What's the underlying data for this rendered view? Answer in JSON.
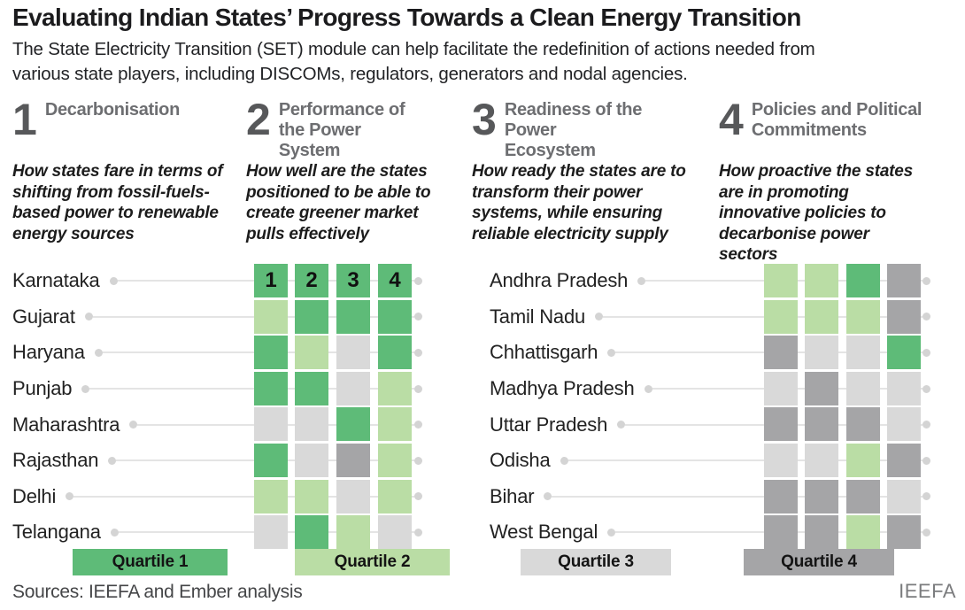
{
  "title": "Evaluating Indian States’ Progress Towards a Clean Energy Transition",
  "subtitle_lines": [
    "The State Electricity Transition (SET) module can help facilitate the redefinition of actions needed from",
    "various state players, including DISCOMs, regulators, generators and nodal agencies."
  ],
  "pillars": [
    {
      "number": "1",
      "label": "Decarbonisation",
      "description": "How states fare in terms of shifting from fossil-fuels-based power to renewable energy sources"
    },
    {
      "number": "2",
      "label": "Performance of the Power System",
      "description": "How well are the states positioned to be able to create greener market pulls effectively"
    },
    {
      "number": "3",
      "label": "Readiness of the Power Ecosystem",
      "description": "How ready the states are to transform their power systems, while ensuring reliable electricity supply"
    },
    {
      "number": "4",
      "label": "Policies and Political Commitments",
      "description": "How proactive the states are in promoting innovative policies to decarbonise power sectors"
    }
  ],
  "legend": [
    {
      "label": "Quartile 1",
      "color": "#5ebb78"
    },
    {
      "label": "Quartile 2",
      "color": "#badda5"
    },
    {
      "label": "Quartile 3",
      "color": "#d9d9d9"
    },
    {
      "label": "Quartile 4",
      "color": "#a5a5a7"
    }
  ],
  "chart_data": {
    "type": "heatmap",
    "title": "Evaluating Indian States’ Progress Towards a Clean Energy Transition",
    "columns": [
      "Decarbonisation",
      "Performance of the Power System",
      "Readiness of the Power Ecosystem",
      "Policies and Political Commitments"
    ],
    "legend_entries": [
      "Quartile 1",
      "Quartile 2",
      "Quartile 3",
      "Quartile 4"
    ],
    "value_meaning": "quartile rank per pillar (1 best, 4 worst)",
    "left_states": [
      {
        "name": "Karnataka",
        "quartiles": [
          1,
          1,
          1,
          1
        ],
        "cell_labels": [
          "1",
          "2",
          "3",
          "4"
        ]
      },
      {
        "name": "Gujarat",
        "quartiles": [
          2,
          1,
          1,
          1
        ]
      },
      {
        "name": "Haryana",
        "quartiles": [
          1,
          2,
          3,
          1
        ]
      },
      {
        "name": "Punjab",
        "quartiles": [
          1,
          1,
          3,
          2
        ]
      },
      {
        "name": "Maharashtra",
        "quartiles": [
          3,
          3,
          1,
          2
        ]
      },
      {
        "name": "Rajasthan",
        "quartiles": [
          1,
          3,
          4,
          2
        ]
      },
      {
        "name": "Delhi",
        "quartiles": [
          2,
          2,
          3,
          2
        ]
      },
      {
        "name": "Telangana",
        "quartiles": [
          3,
          1,
          2,
          3
        ]
      }
    ],
    "right_states": [
      {
        "name": "Andhra Pradesh",
        "quartiles": [
          2,
          2,
          1,
          4
        ]
      },
      {
        "name": "Tamil Nadu",
        "quartiles": [
          2,
          2,
          2,
          4
        ]
      },
      {
        "name": "Chhattisgarh",
        "quartiles": [
          4,
          3,
          3,
          1
        ]
      },
      {
        "name": "Madhya Pradesh",
        "quartiles": [
          3,
          4,
          3,
          3
        ]
      },
      {
        "name": "Uttar Pradesh",
        "quartiles": [
          4,
          4,
          4,
          3
        ]
      },
      {
        "name": "Odisha",
        "quartiles": [
          3,
          3,
          2,
          4
        ]
      },
      {
        "name": "Bihar",
        "quartiles": [
          4,
          4,
          4,
          3
        ]
      },
      {
        "name": "West Bengal",
        "quartiles": [
          4,
          4,
          2,
          4
        ]
      }
    ]
  },
  "footer": {
    "sources": "Sources: IEEFA and Ember analysis",
    "brand": "IEEFA"
  }
}
